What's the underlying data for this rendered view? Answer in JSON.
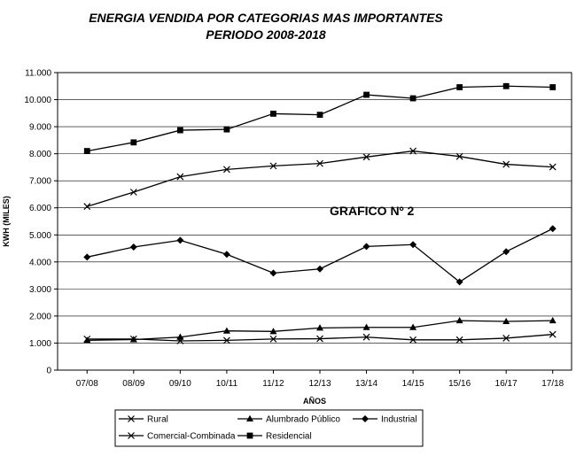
{
  "chart_data": {
    "type": "line",
    "title": "ENERGIA VENDIDA POR CATEGORIAS MAS IMPORTANTES",
    "subtitle": "PERIODO 2008-2018",
    "xlabel": "AÑOS",
    "ylabel": "KWH (MILES)",
    "annotation": "GRAFICO Nº 2",
    "ylim": [
      0,
      11000
    ],
    "yticks": [
      0,
      1000,
      2000,
      3000,
      4000,
      5000,
      6000,
      7000,
      8000,
      9000,
      10000,
      11000
    ],
    "ytick_labels": [
      "0",
      "1.000",
      "2.000",
      "3.000",
      "4.000",
      "5.000",
      "6.000",
      "7.000",
      "8.000",
      "9.000",
      "10.000",
      "11.000"
    ],
    "grid": true,
    "legend_position": "bottom",
    "categories": [
      "07/08",
      "08/09",
      "09/10",
      "10/11",
      "11/12",
      "12/13",
      "13/14",
      "14/15",
      "15/16",
      "16/17",
      "17/18"
    ],
    "series": [
      {
        "name": "Rural",
        "marker": "x",
        "values": [
          1150,
          1150,
          1080,
          1100,
          1150,
          1160,
          1220,
          1120,
          1120,
          1180,
          1320
        ]
      },
      {
        "name": "Alumbrado Público",
        "marker": "triangle",
        "values": [
          1100,
          1130,
          1220,
          1450,
          1430,
          1560,
          1580,
          1580,
          1830,
          1800,
          1830
        ]
      },
      {
        "name": "Industrial",
        "marker": "diamond",
        "values": [
          4180,
          4550,
          4800,
          4280,
          3590,
          3740,
          4570,
          4640,
          3260,
          4380,
          5230
        ]
      },
      {
        "name": "Comercial-Combinada",
        "marker": "x",
        "values": [
          6050,
          6580,
          7150,
          7420,
          7550,
          7640,
          7880,
          8100,
          7900,
          7610,
          7510
        ]
      },
      {
        "name": "Residencial",
        "marker": "square",
        "values": [
          8100,
          8420,
          8870,
          8900,
          9480,
          9440,
          10180,
          10050,
          10460,
          10500,
          10460
        ]
      }
    ]
  }
}
